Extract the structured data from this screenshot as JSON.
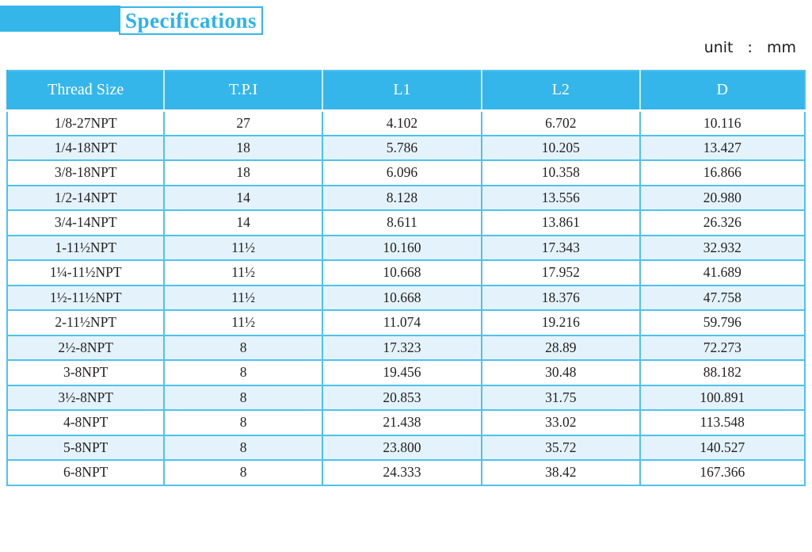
{
  "page": {
    "title": "Specifications",
    "unit_label": "unit : mm"
  },
  "colors": {
    "accent_cyan": "#35b6ea",
    "table_border_cyan": "#4ec2ee",
    "alt_row_blue": "#e4f3fb",
    "title_text_cyan": "#2db3e9",
    "body_text": "#231f20"
  },
  "table": {
    "columns": [
      "Thread Size",
      "T.P.I",
      "L1",
      "L2",
      "D"
    ],
    "rows": [
      [
        "1/8-27NPT",
        "27",
        "4.102",
        "6.702",
        "10.116"
      ],
      [
        "1/4-18NPT",
        "18",
        "5.786",
        "10.205",
        "13.427"
      ],
      [
        "3/8-18NPT",
        "18",
        "6.096",
        "10.358",
        "16.866"
      ],
      [
        "1/2-14NPT",
        "14",
        "8.128",
        "13.556",
        "20.980"
      ],
      [
        "3/4-14NPT",
        "14",
        "8.611",
        "13.861",
        "26.326"
      ],
      [
        "1-11½NPT",
        "11½",
        "10.160",
        "17.343",
        "32.932"
      ],
      [
        "1¼-11½NPT",
        "11½",
        "10.668",
        "17.952",
        "41.689"
      ],
      [
        "1½-11½NPT",
        "11½",
        "10.668",
        "18.376",
        "47.758"
      ],
      [
        "2-11½NPT",
        "11½",
        "11.074",
        "19.216",
        "59.796"
      ],
      [
        "2½-8NPT",
        "8",
        "17.323",
        "28.89",
        "72.273"
      ],
      [
        "3-8NPT",
        "8",
        "19.456",
        "30.48",
        "88.182"
      ],
      [
        "3½-8NPT",
        "8",
        "20.853",
        "31.75",
        "100.891"
      ],
      [
        "4-8NPT",
        "8",
        "21.438",
        "33.02",
        "113.548"
      ],
      [
        "5-8NPT",
        "8",
        "23.800",
        "35.72",
        "140.527"
      ],
      [
        "6-8NPT",
        "8",
        "24.333",
        "38.42",
        "167.366"
      ]
    ]
  }
}
